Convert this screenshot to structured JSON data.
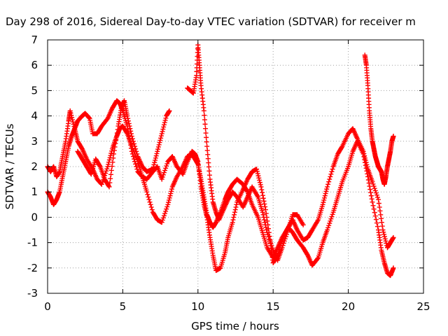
{
  "chart_data": {
    "type": "scatter",
    "title": "Day 298 of 2016, Sidereal Day-to-day VTEC variation (SDTVAR) for receiver m",
    "xlabel": "GPS time / hours",
    "ylabel": "SDTVAR / TECUs",
    "xlim": [
      0,
      25
    ],
    "ylim": [
      -3,
      7
    ],
    "xticks": [
      0,
      5,
      10,
      15,
      20,
      25
    ],
    "yticks": [
      -3,
      -2,
      -1,
      0,
      1,
      2,
      3,
      4,
      5,
      6,
      7
    ],
    "grid": true,
    "marker": "+",
    "color": "#ff0000",
    "series": [
      {
        "x": [
          0.0,
          0.2,
          0.4,
          0.6,
          0.8,
          1.0,
          1.2,
          1.4,
          1.5,
          1.8,
          2.0,
          2.3,
          2.5,
          2.8,
          3.0,
          3.3,
          3.6,
          4.0,
          4.3,
          4.6,
          4.8,
          5.0,
          5.3,
          5.6,
          6.0,
          6.3,
          6.6,
          7.0,
          7.3,
          7.6,
          8.0,
          8.3,
          8.6,
          9.0,
          9.3,
          9.6,
          9.8,
          10.0,
          10.2,
          10.4,
          10.6,
          10.8,
          11.0,
          11.2,
          11.5,
          11.8,
          12.0,
          12.3,
          12.6,
          13.0,
          13.3,
          13.6,
          13.9,
          14.2,
          14.5,
          14.8,
          15.0,
          15.3,
          15.6,
          16.0,
          16.3,
          16.6,
          17.0,
          17.3,
          17.6,
          18.0,
          18.3,
          18.6,
          19.0,
          19.3,
          19.6,
          20.0,
          20.3,
          20.6,
          21.0,
          21.3,
          21.6,
          22.0,
          22.3,
          22.6,
          22.8,
          23.0
        ],
        "y": [
          2.0,
          1.8,
          2.0,
          1.6,
          1.8,
          2.4,
          3.0,
          3.8,
          4.2,
          3.5,
          3.8,
          4.0,
          4.1,
          3.9,
          3.3,
          3.3,
          3.6,
          3.9,
          4.3,
          4.6,
          4.5,
          4.2,
          3.6,
          2.6,
          1.8,
          1.6,
          1.5,
          1.8,
          2.0,
          1.5,
          2.2,
          2.4,
          2.0,
          1.7,
          2.2,
          2.6,
          2.5,
          2.2,
          1.2,
          0.5,
          0.0,
          -0.8,
          -1.5,
          -2.1,
          -2.0,
          -1.4,
          -0.8,
          -0.2,
          0.6,
          1.1,
          1.5,
          1.8,
          1.9,
          1.2,
          0.3,
          -0.9,
          -1.8,
          -1.5,
          -0.9,
          -0.4,
          -0.1,
          -0.5,
          -0.9,
          -0.8,
          -0.5,
          -0.1,
          0.5,
          1.2,
          2.0,
          2.5,
          2.8,
          3.3,
          3.5,
          3.1,
          2.6,
          1.9,
          1.4,
          0.7,
          -0.5,
          -1.2,
          -1.0,
          -0.8
        ]
      },
      {
        "x": [
          0.0,
          0.2,
          0.4,
          0.6,
          0.8,
          1.0,
          1.2,
          1.4,
          1.6,
          1.8,
          2.0,
          2.3,
          2.6,
          3.0,
          3.3,
          3.6,
          4.0,
          4.3,
          4.6,
          4.8,
          5.0,
          5.3,
          5.6,
          6.0,
          6.3,
          6.6,
          7.0,
          7.3,
          7.6,
          8.0,
          8.3,
          8.6,
          9.0,
          9.3,
          9.6,
          9.8,
          10.0,
          10.2,
          10.4,
          10.6,
          10.8,
          11.0,
          11.2,
          11.5,
          11.8,
          12.0,
          12.3,
          12.6,
          13.0,
          13.3,
          13.6,
          14.0,
          14.3,
          14.6,
          15.0,
          15.3,
          15.6,
          16.0,
          16.3,
          16.6,
          17.0,
          17.3,
          17.6,
          18.0,
          18.3,
          18.6,
          19.0,
          19.3,
          19.6,
          20.0,
          20.3,
          20.6,
          21.0,
          21.3,
          21.6,
          22.0,
          22.2,
          22.4,
          22.6,
          22.8,
          23.0
        ],
        "y": [
          1.0,
          0.8,
          0.5,
          0.7,
          1.0,
          1.6,
          2.2,
          2.8,
          3.2,
          3.5,
          3.0,
          2.7,
          2.3,
          1.9,
          1.5,
          1.3,
          2.0,
          2.7,
          3.2,
          3.5,
          3.6,
          3.3,
          2.8,
          2.2,
          1.6,
          1.0,
          0.2,
          -0.1,
          -0.2,
          0.5,
          1.2,
          1.6,
          2.0,
          2.4,
          2.5,
          2.3,
          2.1,
          1.5,
          0.8,
          0.1,
          -0.2,
          -0.4,
          -0.2,
          0.2,
          0.7,
          1.0,
          1.3,
          1.5,
          1.3,
          1.0,
          0.5,
          0.0,
          -0.6,
          -1.2,
          -1.6,
          -1.2,
          -0.8,
          -0.4,
          -0.6,
          -0.9,
          -1.2,
          -1.5,
          -1.9,
          -1.6,
          -1.0,
          -0.5,
          0.2,
          0.8,
          1.4,
          2.0,
          2.6,
          3.0,
          2.5,
          1.6,
          0.6,
          -0.5,
          -1.3,
          -1.8,
          -2.2,
          -2.3,
          -2.0
        ]
      },
      {
        "x": [
          2.0,
          2.3,
          2.6,
          2.9,
          3.2,
          3.5,
          3.8,
          4.1,
          4.4,
          4.7,
          4.9,
          5.1,
          5.3,
          5.6,
          6.0,
          6.3,
          6.6,
          7.0,
          7.3,
          7.6,
          7.9,
          8.1
        ],
        "y": [
          2.6,
          2.3,
          2.0,
          1.7,
          2.3,
          2.0,
          1.5,
          1.2,
          2.5,
          3.6,
          4.3,
          4.6,
          4.0,
          3.2,
          2.4,
          2.0,
          1.8,
          1.9,
          2.6,
          3.3,
          4.0,
          4.2
        ]
      },
      {
        "x": [
          9.3,
          9.5,
          9.7,
          9.9,
          10.0,
          10.1,
          10.2,
          10.4,
          10.6,
          10.8,
          11.0,
          11.2,
          11.4,
          11.7,
          12.0,
          12.3,
          12.6,
          13.0,
          13.3,
          13.6,
          14.0,
          14.3,
          14.6,
          15.0,
          15.3,
          15.6,
          16.0,
          16.3,
          16.6,
          17.0
        ],
        "y": [
          5.1,
          5.0,
          4.9,
          5.6,
          6.8,
          6.0,
          5.2,
          4.2,
          2.8,
          1.5,
          0.6,
          0.2,
          -0.1,
          0.3,
          0.7,
          1.0,
          0.8,
          0.4,
          0.8,
          1.2,
          0.8,
          0.2,
          -0.6,
          -1.3,
          -1.7,
          -1.2,
          -0.5,
          0.1,
          0.1,
          -0.3
        ]
      },
      {
        "x": [
          21.1,
          21.2,
          21.3,
          21.4,
          21.5,
          21.6,
          21.7,
          21.8,
          21.9,
          22.0,
          22.1,
          22.2,
          22.3,
          22.4,
          22.5,
          22.6,
          22.7,
          22.8,
          22.9,
          23.0
        ],
        "y": [
          6.4,
          6.0,
          5.2,
          4.2,
          3.5,
          3.0,
          2.7,
          2.4,
          2.2,
          2.0,
          1.9,
          1.8,
          1.5,
          1.3,
          1.6,
          2.0,
          2.3,
          2.6,
          3.0,
          3.2
        ]
      }
    ]
  }
}
